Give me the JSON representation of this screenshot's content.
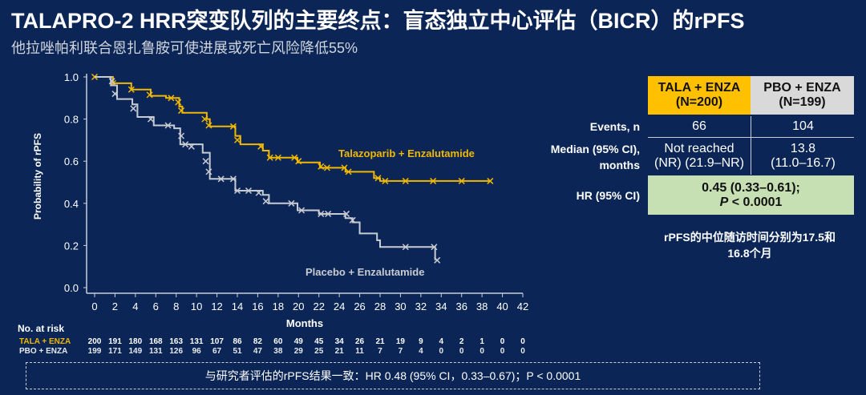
{
  "title": "TALAPRO-2 HRR突变队列的主要终点：盲态独立中心评估（BICR）的rPFS",
  "subtitle": "他拉唑帕利联合恩扎鲁胺可使进展或死亡风险降低55%",
  "colors": {
    "background": "#0b2656",
    "tala": "#f2b800",
    "pbo": "#c8cbd2",
    "hr_cell": "#c6e0b4",
    "tala_header": "#ffc000",
    "pbo_header": "#d9d9d9"
  },
  "chart_data": {
    "type": "line",
    "subtype": "kaplan-meier",
    "xlabel": "Months",
    "ylabel": "Probability of rPFS",
    "xlim": [
      0,
      42
    ],
    "ylim": [
      0,
      1
    ],
    "x_ticks": [
      "0",
      "2",
      "4",
      "6",
      "8",
      "10",
      "12",
      "14",
      "16",
      "18",
      "20",
      "22",
      "24",
      "26",
      "28",
      "30",
      "32",
      "34",
      "36",
      "38",
      "40",
      "42"
    ],
    "y_ticks": [
      "0.0",
      "0.2",
      "0.4",
      "0.6",
      "0.8",
      "1.0"
    ],
    "series": [
      {
        "name": "Talazoparib + Enzalutamide",
        "color": "#f2b800",
        "steps": [
          [
            0,
            1
          ],
          [
            1.8,
            0.97
          ],
          [
            3.6,
            0.94
          ],
          [
            5.5,
            0.91
          ],
          [
            7,
            0.9
          ],
          [
            8.3,
            0.86
          ],
          [
            8.6,
            0.83
          ],
          [
            11,
            0.8
          ],
          [
            11.3,
            0.765
          ],
          [
            13.8,
            0.72
          ],
          [
            14.3,
            0.68
          ],
          [
            16.5,
            0.65
          ],
          [
            17.1,
            0.617
          ],
          [
            19.9,
            0.594
          ],
          [
            22.1,
            0.569
          ],
          [
            24.6,
            0.55
          ],
          [
            27.4,
            0.52
          ],
          [
            28,
            0.506
          ],
          [
            38.8,
            0.506
          ]
        ],
        "censored": [
          [
            0,
            1
          ],
          [
            1.8,
            0.97
          ],
          [
            3.6,
            0.94
          ],
          [
            5.4,
            0.915
          ],
          [
            7.5,
            0.9
          ],
          [
            8.2,
            0.88
          ],
          [
            8.5,
            0.84
          ],
          [
            10.8,
            0.8
          ],
          [
            11.2,
            0.77
          ],
          [
            13.6,
            0.765
          ],
          [
            14,
            0.7
          ],
          [
            16.3,
            0.67
          ],
          [
            17.2,
            0.617
          ],
          [
            18,
            0.617
          ],
          [
            19.6,
            0.617
          ],
          [
            20,
            0.6
          ],
          [
            22.2,
            0.575
          ],
          [
            22.8,
            0.569
          ],
          [
            24.5,
            0.569
          ],
          [
            24.9,
            0.55
          ],
          [
            27.8,
            0.52
          ],
          [
            28.5,
            0.506
          ],
          [
            30.5,
            0.506
          ],
          [
            33.2,
            0.506
          ],
          [
            36,
            0.506
          ],
          [
            38.8,
            0.506
          ]
        ]
      },
      {
        "name": "Placebo + Enzalutamide",
        "color": "#c8cbd2",
        "steps": [
          [
            0,
            1
          ],
          [
            1.6,
            0.96
          ],
          [
            2.2,
            0.895
          ],
          [
            3.7,
            0.87
          ],
          [
            4.2,
            0.81
          ],
          [
            5.8,
            0.77
          ],
          [
            7.8,
            0.756
          ],
          [
            8.4,
            0.68
          ],
          [
            10.6,
            0.64
          ],
          [
            11.3,
            0.516
          ],
          [
            13.8,
            0.46
          ],
          [
            16.5,
            0.44
          ],
          [
            17.1,
            0.4
          ],
          [
            19.9,
            0.367
          ],
          [
            22,
            0.35
          ],
          [
            24.6,
            0.33
          ],
          [
            25.3,
            0.31
          ],
          [
            26,
            0.257
          ],
          [
            27.7,
            0.225
          ],
          [
            28,
            0.193
          ],
          [
            33.4,
            0.13
          ]
        ],
        "censored": [
          [
            1.7,
            0.98
          ],
          [
            2,
            0.92
          ],
          [
            3.8,
            0.85
          ],
          [
            5.5,
            0.8
          ],
          [
            7.2,
            0.77
          ],
          [
            8.5,
            0.72
          ],
          [
            8.9,
            0.68
          ],
          [
            9.5,
            0.67
          ],
          [
            10.9,
            0.6
          ],
          [
            11.2,
            0.55
          ],
          [
            12.4,
            0.516
          ],
          [
            13.6,
            0.516
          ],
          [
            14,
            0.46
          ],
          [
            15.1,
            0.46
          ],
          [
            16.1,
            0.45
          ],
          [
            16.8,
            0.41
          ],
          [
            19.3,
            0.4
          ],
          [
            20.3,
            0.367
          ],
          [
            22.2,
            0.35
          ],
          [
            22.9,
            0.35
          ],
          [
            24.7,
            0.35
          ],
          [
            25.3,
            0.32
          ],
          [
            30.5,
            0.193
          ],
          [
            33.3,
            0.193
          ],
          [
            33.6,
            0.13
          ]
        ]
      }
    ],
    "at_risk": {
      "label": "No. at risk",
      "rows": [
        {
          "name": "TALA + ENZA",
          "values": [
            "200",
            "191",
            "180",
            "168",
            "163",
            "131",
            "107",
            "86",
            "82",
            "60",
            "49",
            "45",
            "34",
            "26",
            "21",
            "19",
            "9",
            "4",
            "2",
            "1",
            "0",
            "0"
          ]
        },
        {
          "name": "PBO + ENZA",
          "values": [
            "199",
            "171",
            "149",
            "131",
            "126",
            "96",
            "67",
            "51",
            "47",
            "38",
            "29",
            "25",
            "21",
            "11",
            "7",
            "7",
            "4",
            "0",
            "0",
            "0",
            "0",
            "0"
          ]
        }
      ]
    }
  },
  "table": {
    "col1": {
      "line1": "TALA + ENZA",
      "line2": "(N=200)"
    },
    "col2": {
      "line1": "PBO + ENZA",
      "line2": "(N=199)"
    },
    "events": {
      "label": "Events, n",
      "tala": "66",
      "pbo": "104"
    },
    "median": {
      "label1": "Median (95% CI),",
      "label2": "months",
      "tala1": "Not reached",
      "tala2": "(NR) (21.9–NR)",
      "pbo1": "13.8",
      "pbo2": "(11.0–16.7)"
    },
    "hr": {
      "label": "HR (95% CI)",
      "value": "0.45 (0.33–0.61);",
      "p_italic": "P",
      "p_rest": " < 0.0001"
    }
  },
  "note": {
    "line1": "rPFS的中位随访时间分别为17.5和",
    "line2": "16.8个月"
  },
  "footer": "与研究者评估的rPFS结果一致：HR 0.48 (95% CI，0.33–0.67)；P < 0.0001"
}
